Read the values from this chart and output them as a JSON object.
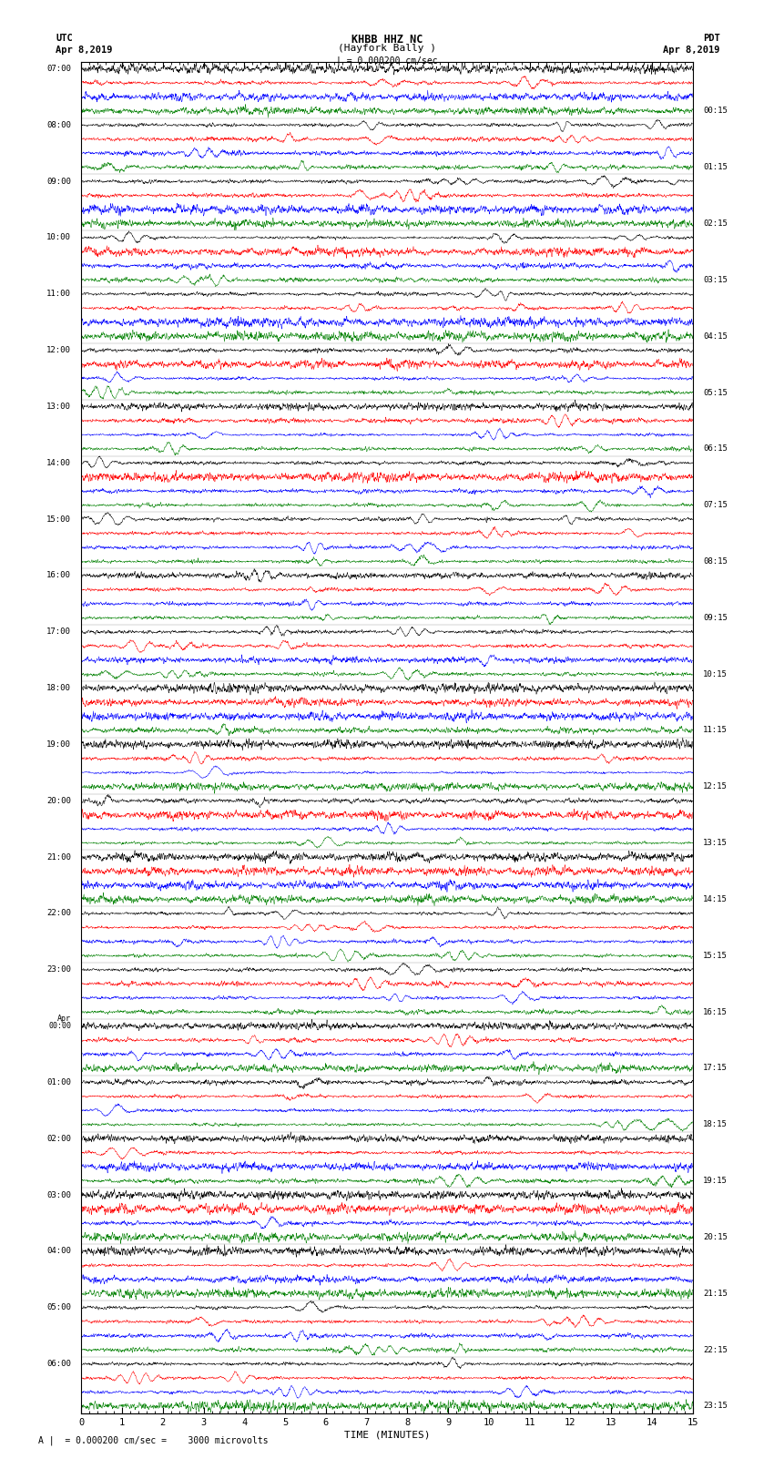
{
  "title_line1": "KHBB HHZ NC",
  "title_line2": "(Hayfork Bally )",
  "scale_text": "| = 0.000200 cm/sec",
  "left_label": "UTC",
  "left_date": "Apr 8,2019",
  "right_label": "PDT",
  "right_date": "Apr 8,2019",
  "xlabel": "TIME (MINUTES)",
  "scalebar_text": "A |  = 0.000200 cm/sec =    3000 microvolts",
  "bg_color": "#ffffff",
  "trace_colors": [
    "#000000",
    "#ff0000",
    "#0000ff",
    "#008000"
  ],
  "minutes_per_row": 15,
  "n_hour_groups": 24,
  "traces_per_group": 4,
  "left_times": [
    "07:00",
    "08:00",
    "09:00",
    "10:00",
    "11:00",
    "12:00",
    "13:00",
    "14:00",
    "15:00",
    "16:00",
    "17:00",
    "18:00",
    "19:00",
    "20:00",
    "21:00",
    "22:00",
    "23:00",
    "00:00",
    "01:00",
    "02:00",
    "03:00",
    "04:00",
    "05:00",
    "06:00"
  ],
  "apr_group_index": 17,
  "right_times": [
    "00:15",
    "01:15",
    "02:15",
    "03:15",
    "04:15",
    "05:15",
    "06:15",
    "07:15",
    "08:15",
    "09:15",
    "10:15",
    "11:15",
    "12:15",
    "13:15",
    "14:15",
    "15:15",
    "16:15",
    "17:15",
    "18:15",
    "19:15",
    "20:15",
    "21:15",
    "22:15",
    "23:15"
  ]
}
